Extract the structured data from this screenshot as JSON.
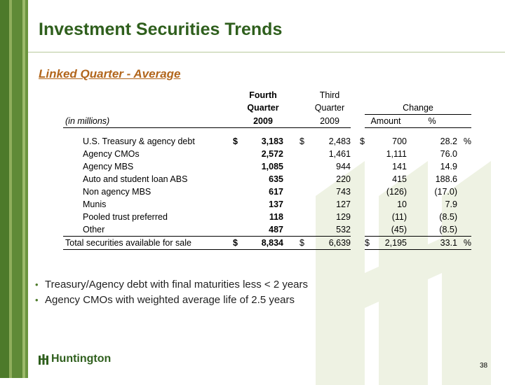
{
  "slide": {
    "title": "Investment Securities Trends",
    "subtitle": "Linked Quarter - Average",
    "page_number": "38",
    "logo_text": "Huntington"
  },
  "table": {
    "header": {
      "q4_line1": "Fourth",
      "q4_line2": "Quarter",
      "q4_year": "2009",
      "q3_line1": "Third",
      "q3_line2": "Quarter",
      "q3_year": "2009",
      "change": "Change",
      "amount": "Amount",
      "pct": "%",
      "units": "(in millions)"
    },
    "rows": [
      {
        "label": "U.S. Treasury & agency debt",
        "q4_sym": "$",
        "q4": "3,183",
        "q3_sym": "$",
        "q3": "2,483",
        "amt_sym": "$",
        "amt": "700",
        "pct": "28.2",
        "pct_sym": "%"
      },
      {
        "label": "Agency CMOs",
        "q4_sym": "",
        "q4": "2,572",
        "q3_sym": "",
        "q3": "1,461",
        "amt_sym": "",
        "amt": "1,111",
        "pct": "76.0",
        "pct_sym": ""
      },
      {
        "label": "Agency MBS",
        "q4_sym": "",
        "q4": "1,085",
        "q3_sym": "",
        "q3": "944",
        "amt_sym": "",
        "amt": "141",
        "pct": "14.9",
        "pct_sym": ""
      },
      {
        "label": "Auto and student loan ABS",
        "q4_sym": "",
        "q4": "635",
        "q3_sym": "",
        "q3": "220",
        "amt_sym": "",
        "amt": "415",
        "pct": "188.6",
        "pct_sym": ""
      },
      {
        "label": "Non agency MBS",
        "q4_sym": "",
        "q4": "617",
        "q3_sym": "",
        "q3": "743",
        "amt_sym": "",
        "amt": "(126)",
        "pct": "(17.0)",
        "pct_sym": ""
      },
      {
        "label": "Munis",
        "q4_sym": "",
        "q4": "137",
        "q3_sym": "",
        "q3": "127",
        "amt_sym": "",
        "amt": "10",
        "pct": "7.9",
        "pct_sym": ""
      },
      {
        "label": "Pooled trust preferred",
        "q4_sym": "",
        "q4": "118",
        "q3_sym": "",
        "q3": "129",
        "amt_sym": "",
        "amt": "(11)",
        "pct": "(8.5)",
        "pct_sym": ""
      },
      {
        "label": "Other",
        "q4_sym": "",
        "q4": "487",
        "q3_sym": "",
        "q3": "532",
        "amt_sym": "",
        "amt": "(45)",
        "pct": "(8.5)",
        "pct_sym": ""
      }
    ],
    "total": {
      "label": "Total securities available for sale",
      "q4_sym": "$",
      "q4": "8,834",
      "q3_sym": "$",
      "q3": "6,639",
      "amt_sym": "$",
      "amt": "2,195",
      "pct": "33.1",
      "pct_sym": "%"
    }
  },
  "bullets": [
    "Treasury/Agency debt with final maturities less < 2 years",
    "Agency CMOs with weighted average life of 2.5 years"
  ],
  "colors": {
    "title_green": "#2f5f1d",
    "subtitle_orange": "#b2661c",
    "band_green": "#4d7a2a",
    "watermark_green": "#eef2e3"
  }
}
